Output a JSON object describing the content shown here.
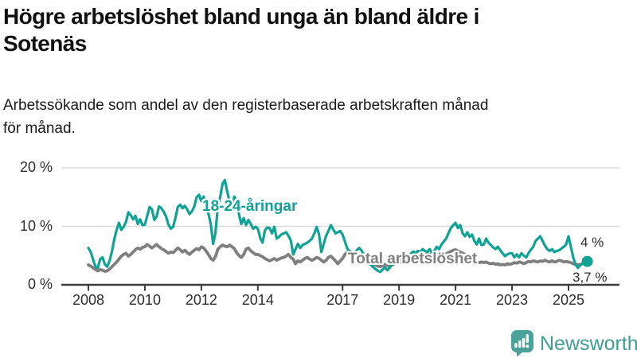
{
  "header": {
    "title_line1": "Högre arbetslöshet bland unga än bland äldre i",
    "title_line2": "Sotenäs",
    "subtitle_line1": "Arbetssökande som andel av den registerbaserade arbetskraften månad",
    "subtitle_line2": "för månad."
  },
  "chart_data": {
    "type": "line",
    "x_unit": "months",
    "x_start_year": 2008,
    "x_end": "2025-09",
    "ylim": [
      0,
      20
    ],
    "grid": true,
    "legend": "inline-labels",
    "x_ticks": [
      2008,
      2010,
      2012,
      2014,
      2017,
      2019,
      2021,
      2023,
      2025
    ],
    "y_ticks": [
      {
        "value": 0,
        "label": "0 %"
      },
      {
        "value": 10,
        "label": "10 %"
      },
      {
        "value": 20,
        "label": "20 %"
      }
    ],
    "series": [
      {
        "name": "18-24-åringar",
        "color": "#10a295",
        "end_label": "4 %",
        "values": [
          6.3,
          5.6,
          4.3,
          3.1,
          2.9,
          4.4,
          4.7,
          3.5,
          3.1,
          4.1,
          5.7,
          7.8,
          9.4,
          10.6,
          9.4,
          9.9,
          10.8,
          12.4,
          11.9,
          11.2,
          11.8,
          10.4,
          11.2,
          10.2,
          10.3,
          11.8,
          13.3,
          12.9,
          11.1,
          11.7,
          13.4,
          13.1,
          12.5,
          11.7,
          10.3,
          9.6,
          9.9,
          11.5,
          13.3,
          13.7,
          13.1,
          13.5,
          12.9,
          12.1,
          12.6,
          13.4,
          15.0,
          15.4,
          14.3,
          15.1,
          13.6,
          12.2,
          10.4,
          7.0,
          8.9,
          13.3,
          15.0,
          17.3,
          17.9,
          15.9,
          14.2,
          13.3,
          15.1,
          14.3,
          12.0,
          10.4,
          11.4,
          10.2,
          11.1,
          10.4,
          9.6,
          9.9,
          9.6,
          8.0,
          7.2,
          9.3,
          9.8,
          9.7,
          8.8,
          9.9,
          7.9,
          8.2,
          8.6,
          8.8,
          9.0,
          8.4,
          7.6,
          5.2,
          6.1,
          7.0,
          6.3,
          6.8,
          7.0,
          7.2,
          7.5,
          7.9,
          8.8,
          9.9,
          8.6,
          5.6,
          7.0,
          8.4,
          9.2,
          10.2,
          9.5,
          8.8,
          9.0,
          9.2,
          8.6,
          7.4,
          6.2,
          5.5,
          5.0,
          5.4,
          5.9,
          6.3,
          5.9,
          5.2,
          4.5,
          3.9,
          3.4,
          3.0,
          2.7,
          2.4,
          2.2,
          2.6,
          3.0,
          2.5,
          2.9,
          3.4,
          3.8,
          4.3,
          4.7,
          4.4,
          4.8,
          5.2,
          4.9,
          5.3,
          5.7,
          5.4,
          5.8,
          5.6,
          6.1,
          5.8,
          5.6,
          6.1,
          5.4,
          5.8,
          6.5,
          6.1,
          6.9,
          7.4,
          7.9,
          8.8,
          9.7,
          10.2,
          10.6,
          9.7,
          10.2,
          8.8,
          8.3,
          9.0,
          8.2,
          8.6,
          7.5,
          6.9,
          7.9,
          6.8,
          6.9,
          7.9,
          7.2,
          6.8,
          6.4,
          6.1,
          6.5,
          5.9,
          5.4,
          4.9,
          5.2,
          5.4,
          5.4,
          4.7,
          5.2,
          4.7,
          5.4,
          5.0,
          4.7,
          5.4,
          6.0,
          6.5,
          7.5,
          7.9,
          8.3,
          7.5,
          6.7,
          6.1,
          5.8,
          6.1,
          5.6,
          5.8,
          5.9,
          6.2,
          6.5,
          6.9,
          8.3,
          6.5,
          4.7,
          3.4,
          2.9,
          3.4,
          3.6,
          3.8,
          4.0
        ]
      },
      {
        "name": "Total arbetslöshet",
        "color": "#7f7f7f",
        "end_label": "3,7 %",
        "values": [
          3.4,
          3.2,
          2.9,
          2.6,
          2.4,
          2.6,
          2.5,
          2.3,
          2.4,
          2.7,
          3.1,
          3.5,
          3.9,
          4.4,
          4.9,
          5.2,
          5.4,
          4.9,
          5.2,
          5.6,
          6.0,
          6.3,
          6.1,
          6.4,
          6.5,
          6.9,
          6.6,
          6.3,
          6.6,
          6.9,
          6.5,
          6.2,
          6.0,
          5.7,
          5.4,
          5.6,
          5.5,
          5.9,
          6.3,
          6.0,
          5.6,
          5.9,
          5.5,
          5.2,
          5.6,
          5.9,
          6.2,
          6.0,
          6.5,
          6.3,
          5.8,
          5.2,
          4.5,
          4.2,
          4.8,
          6.1,
          6.5,
          6.8,
          6.6,
          6.5,
          6.8,
          6.5,
          6.2,
          5.5,
          5.0,
          4.7,
          5.2,
          6.1,
          6.3,
          5.8,
          5.5,
          5.2,
          5.2,
          5.0,
          4.8,
          4.5,
          4.3,
          4.1,
          4.3,
          4.5,
          4.2,
          4.4,
          4.6,
          4.7,
          4.9,
          5.2,
          4.7,
          4.4,
          3.6,
          4.1,
          3.9,
          4.2,
          4.5,
          4.7,
          4.4,
          4.2,
          4.4,
          4.7,
          4.5,
          4.2,
          3.9,
          4.2,
          4.7,
          4.9,
          4.5,
          4.1,
          3.6,
          4.1,
          4.5,
          5.2,
          5.6,
          5.8,
          5.5,
          5.2,
          4.9,
          4.7,
          4.5,
          4.3,
          4.1,
          3.9,
          3.7,
          3.5,
          3.4,
          3.2,
          3.1,
          3.3,
          3.5,
          3.3,
          3.2,
          3.4,
          3.6,
          3.8,
          4.0,
          3.8,
          4.0,
          4.2,
          4.0,
          4.2,
          4.4,
          4.2,
          4.4,
          4.7,
          4.9,
          5.1,
          5.3,
          5.1,
          5.3,
          5.5,
          5.3,
          5.1,
          5.3,
          5.1,
          5.3,
          5.5,
          5.7,
          5.9,
          6.0,
          5.8,
          5.6,
          5.4,
          5.2,
          4.9,
          4.6,
          4.3,
          4.1,
          3.9,
          3.8,
          3.9,
          3.8,
          3.9,
          3.7,
          3.6,
          3.7,
          3.5,
          3.6,
          3.4,
          3.5,
          3.4,
          3.6,
          3.5,
          3.6,
          3.8,
          3.7,
          3.9,
          3.8,
          3.6,
          3.8,
          4.0,
          3.9,
          4.1,
          4.0,
          3.9,
          4.1,
          4.0,
          4.2,
          4.0,
          3.9,
          4.1,
          3.9,
          4.0,
          4.2,
          4.1,
          3.9,
          4.0,
          3.9,
          3.8,
          3.6,
          3.5,
          3.4,
          3.5,
          3.6,
          3.6,
          3.7
        ]
      }
    ],
    "colors": {
      "grid": "#dcdcdc",
      "axis": "#3c3c3c",
      "tick_text": "#2e2e2e"
    }
  },
  "footer": {
    "brand": "Newsworthy",
    "brand_color": "#3f9d93",
    "logo_color": "#4aa29a"
  }
}
